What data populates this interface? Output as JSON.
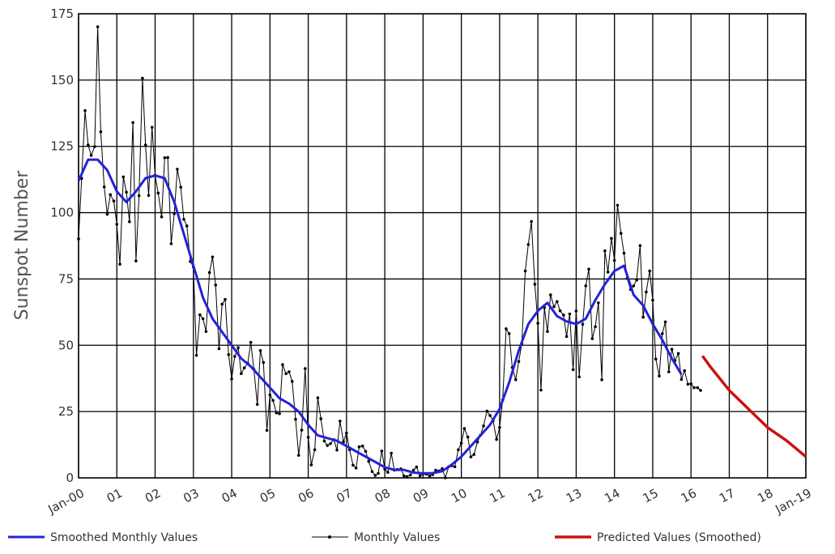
{
  "chart_data": {
    "type": "line",
    "ylabel": "Sunspot Number",
    "xlim": [
      2000,
      2019
    ],
    "ylim": [
      0,
      175
    ],
    "xticks": [
      {
        "value": 2000,
        "label": "Jan-00"
      },
      {
        "value": 2001,
        "label": "01"
      },
      {
        "value": 2002,
        "label": "02"
      },
      {
        "value": 2003,
        "label": "03"
      },
      {
        "value": 2004,
        "label": "04"
      },
      {
        "value": 2005,
        "label": "05"
      },
      {
        "value": 2006,
        "label": "06"
      },
      {
        "value": 2007,
        "label": "07"
      },
      {
        "value": 2008,
        "label": "08"
      },
      {
        "value": 2009,
        "label": "09"
      },
      {
        "value": 2010,
        "label": "10"
      },
      {
        "value": 2011,
        "label": "11"
      },
      {
        "value": 2012,
        "label": "12"
      },
      {
        "value": 2013,
        "label": "13"
      },
      {
        "value": 2014,
        "label": "14"
      },
      {
        "value": 2015,
        "label": "15"
      },
      {
        "value": 2016,
        "label": "16"
      },
      {
        "value": 2017,
        "label": "17"
      },
      {
        "value": 2018,
        "label": "18"
      },
      {
        "value": 2019,
        "label": "Jan-19"
      }
    ],
    "yticks": [
      0,
      25,
      50,
      75,
      100,
      125,
      150,
      175
    ],
    "grid": true,
    "series": [
      {
        "name": "Smoothed Monthly Values",
        "color": "#2323d6",
        "width": 3,
        "marker": false,
        "x": [
          2000,
          2000.25,
          2000.5,
          2000.75,
          2001,
          2001.25,
          2001.5,
          2001.75,
          2002,
          2002.25,
          2002.5,
          2002.75,
          2003,
          2003.25,
          2003.5,
          2003.75,
          2004,
          2004.25,
          2004.5,
          2004.75,
          2005,
          2005.25,
          2005.5,
          2005.75,
          2006,
          2006.25,
          2006.5,
          2006.75,
          2007,
          2007.25,
          2007.5,
          2007.75,
          2008,
          2008.25,
          2008.5,
          2008.75,
          2009,
          2009.25,
          2009.5,
          2009.75,
          2010,
          2010.25,
          2010.5,
          2010.75,
          2011,
          2011.25,
          2011.5,
          2011.75,
          2012,
          2012.25,
          2012.5,
          2012.75,
          2013,
          2013.25,
          2013.5,
          2013.75,
          2014,
          2014.25,
          2014.5,
          2014.75,
          2015,
          2015.25,
          2015.5,
          2015.75
        ],
        "values": [
          112,
          120,
          120,
          116,
          108,
          104,
          108,
          113,
          114,
          113,
          104,
          92,
          80,
          68,
          60,
          55,
          50,
          45,
          42,
          38,
          34,
          30,
          28,
          25,
          20,
          16,
          15,
          14,
          12,
          10,
          8,
          6,
          4,
          3,
          3,
          2,
          1.7,
          1.8,
          2.5,
          5,
          8,
          12,
          16,
          20,
          26,
          36,
          48,
          58,
          63,
          66,
          61,
          59,
          58,
          60,
          67,
          73,
          78,
          80,
          69,
          65,
          58,
          52,
          45,
          39
        ]
      },
      {
        "name": "Monthly Values",
        "color": "#000000",
        "width": 1,
        "marker": true,
        "x": [
          2000,
          2000.08,
          2000.17,
          2000.25,
          2000.33,
          2000.42,
          2000.5,
          2000.58,
          2000.67,
          2000.75,
          2000.83,
          2000.92,
          2001,
          2001.08,
          2001.17,
          2001.25,
          2001.33,
          2001.42,
          2001.5,
          2001.58,
          2001.67,
          2001.75,
          2001.83,
          2001.92,
          2002,
          2002.08,
          2002.17,
          2002.25,
          2002.33,
          2002.42,
          2002.5,
          2002.58,
          2002.67,
          2002.75,
          2002.83,
          2002.92,
          2003,
          2003.08,
          2003.17,
          2003.25,
          2003.33,
          2003.42,
          2003.5,
          2003.58,
          2003.67,
          2003.75,
          2003.83,
          2003.92,
          2004,
          2004.08,
          2004.17,
          2004.25,
          2004.33,
          2004.42,
          2004.5,
          2004.58,
          2004.67,
          2004.75,
          2004.83,
          2004.92,
          2005,
          2005.08,
          2005.17,
          2005.25,
          2005.33,
          2005.42,
          2005.5,
          2005.58,
          2005.67,
          2005.75,
          2005.83,
          2005.92,
          2006,
          2006.08,
          2006.17,
          2006.25,
          2006.33,
          2006.42,
          2006.5,
          2006.58,
          2006.67,
          2006.75,
          2006.83,
          2006.92,
          2007,
          2007.08,
          2007.17,
          2007.25,
          2007.33,
          2007.42,
          2007.5,
          2007.58,
          2007.67,
          2007.75,
          2007.83,
          2007.92,
          2008,
          2008.08,
          2008.17,
          2008.25,
          2008.33,
          2008.42,
          2008.5,
          2008.58,
          2008.67,
          2008.75,
          2008.83,
          2008.92,
          2009,
          2009.08,
          2009.17,
          2009.25,
          2009.33,
          2009.42,
          2009.5,
          2009.58,
          2009.67,
          2009.75,
          2009.83,
          2009.92,
          2010,
          2010.08,
          2010.17,
          2010.25,
          2010.33,
          2010.42,
          2010.5,
          2010.58,
          2010.67,
          2010.75,
          2010.83,
          2010.92,
          2011,
          2011.08,
          2011.17,
          2011.25,
          2011.33,
          2011.42,
          2011.5,
          2011.58,
          2011.67,
          2011.75,
          2011.83,
          2011.92,
          2012,
          2012.08,
          2012.17,
          2012.25,
          2012.33,
          2012.42,
          2012.5,
          2012.58,
          2012.67,
          2012.75,
          2012.83,
          2012.92,
          2013,
          2013.08,
          2013.17,
          2013.25,
          2013.33,
          2013.42,
          2013.5,
          2013.58,
          2013.67,
          2013.75,
          2013.83,
          2013.92,
          2014,
          2014.08,
          2014.17,
          2014.25,
          2014.33,
          2014.42,
          2014.5,
          2014.58,
          2014.67,
          2014.75,
          2014.83,
          2014.92,
          2015,
          2015.08,
          2015.17,
          2015.25,
          2015.33,
          2015.42,
          2015.5,
          2015.58,
          2015.67,
          2015.75,
          2015.83,
          2015.92,
          2016,
          2016.08,
          2016.17,
          2016.25
        ],
        "values": [
          90.1,
          112.9,
          138.5,
          125.5,
          121.6,
          124.9,
          170.1,
          130.5,
          109.7,
          99.4,
          106.8,
          104.4,
          95.6,
          80.6,
          113.5,
          107.7,
          96.6,
          134.0,
          81.8,
          106.4,
          150.7,
          125.5,
          106.5,
          132.2,
          114.1,
          107.4,
          98.4,
          120.7,
          120.8,
          88.3,
          99.6,
          116.4,
          109.6,
          97.5,
          95.0,
          81.6,
          79.5,
          46.2,
          61.5,
          60.0,
          55.2,
          77.4,
          83.3,
          72.7,
          48.7,
          65.5,
          67.3,
          46.5,
          37.3,
          45.8,
          49.1,
          39.3,
          41.5,
          43.2,
          51.1,
          40.9,
          27.7,
          48.0,
          43.5,
          17.9,
          31.3,
          29.2,
          24.5,
          24.2,
          42.7,
          39.3,
          40.0,
          36.4,
          22.1,
          8.5,
          18.0,
          41.2,
          15.3,
          4.9,
          10.6,
          30.2,
          22.3,
          13.9,
          12.2,
          12.9,
          14.4,
          10.5,
          21.4,
          13.6,
          16.9,
          10.6,
          4.8,
          3.7,
          11.7,
          12.0,
          10.0,
          6.2,
          2.4,
          0.9,
          1.7,
          10.1,
          3.3,
          2.1,
          9.3,
          2.9,
          3.2,
          3.4,
          0.8,
          0.5,
          1.1,
          2.9,
          4.1,
          0.8,
          1.5,
          1.4,
          0.7,
          1.2,
          2.9,
          2.6,
          3.5,
          0.0,
          4.2,
          4.6,
          4.2,
          10.6,
          13.1,
          18.6,
          15.4,
          7.9,
          8.8,
          13.5,
          16.1,
          19.6,
          25.2,
          23.5,
          21.6,
          14.5,
          19.0,
          29.4,
          56.2,
          54.4,
          41.6,
          37.0,
          43.9,
          50.6,
          78.0,
          88.0,
          96.7,
          73.0,
          58.3,
          33.1,
          64.2,
          55.2,
          69.0,
          64.5,
          66.5,
          63.0,
          61.4,
          53.3,
          61.8,
          40.8,
          62.9,
          38.1,
          57.9,
          72.4,
          78.7,
          52.5,
          57.0,
          66.0,
          37.0,
          85.6,
          77.6,
          90.3,
          82.0,
          102.8,
          92.2,
          84.7,
          75.2,
          71.0,
          72.4,
          74.6,
          87.6,
          60.6,
          70.1,
          78.0,
          67.0,
          44.8,
          38.4,
          54.4,
          58.8,
          40.0,
          48.5,
          44.2,
          46.9,
          37.1,
          40.4,
          35.3,
          35.5,
          34.0,
          34.0,
          33.0
        ]
      },
      {
        "name": "Predicted Values (Smoothed)",
        "color": "#cc1111",
        "width": 3.5,
        "marker": false,
        "x": [
          2016.3,
          2016.5,
          2017,
          2017.5,
          2018,
          2018.5,
          2019
        ],
        "values": [
          46,
          42,
          33,
          26,
          19,
          14,
          8
        ]
      }
    ]
  }
}
